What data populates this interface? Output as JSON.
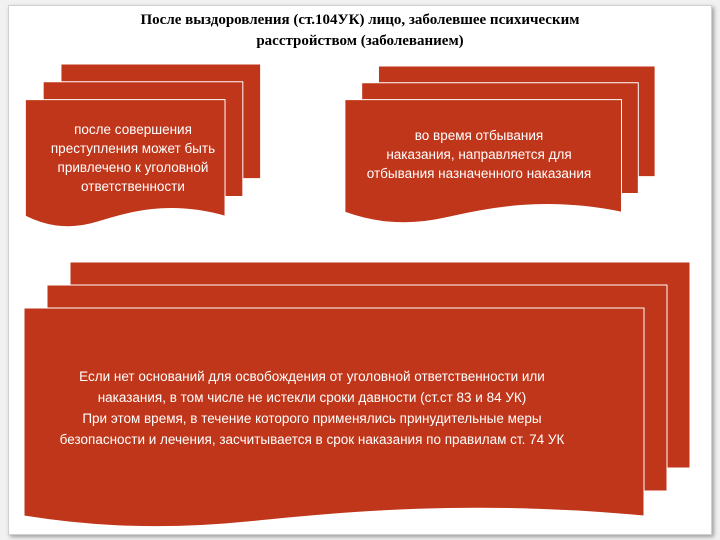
{
  "title": {
    "line1": "После выздоровления (ст.104УК) лицо, заболевшее психическим",
    "line2": "расстройством (заболеванием)"
  },
  "colors": {
    "shape_fill": "#C0361A",
    "shape_stroke": "#FFFFFF",
    "text": "#FFFFFF"
  },
  "cards": {
    "left": {
      "lines": [
        "после совершения",
        "преступления может быть",
        "привлечено к уголовной",
        "ответственности"
      ]
    },
    "right": {
      "lines": [
        "во время отбывания",
        "наказания, направляется для",
        "отбывания назначенного наказания"
      ]
    },
    "bottom": {
      "lines": [
        "Если нет оснований для освобождения от уголовной ответственности или",
        "наказания, в том числе не истекли сроки давности (ст.ст 83 и 84 УК)",
        "При этом время, в течение которого применялись принудительные меры",
        "безопасности и лечения, засчитывается в срок наказания по правилам ст. 74 УК"
      ]
    }
  }
}
